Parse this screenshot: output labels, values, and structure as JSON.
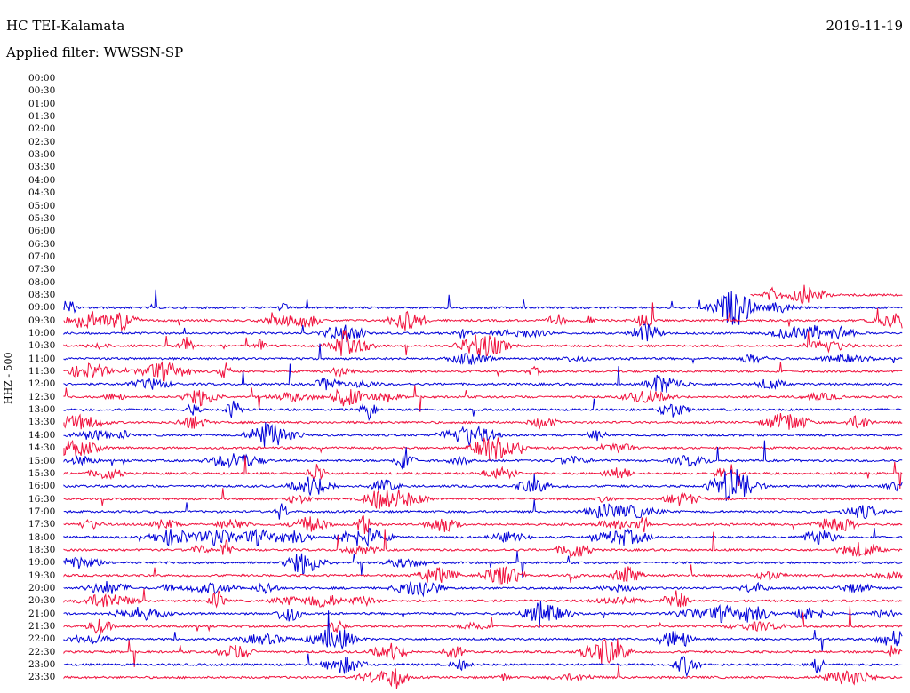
{
  "header": {
    "station": "HC TEI-Kalamata",
    "date": "2019-11-19",
    "filter": "Applied filter: WWSSN-SP"
  },
  "axis": {
    "side_label": "HHZ - 500",
    "time_labels": [
      "00:00",
      "00:30",
      "01:00",
      "01:30",
      "02:00",
      "02:30",
      "03:00",
      "03:30",
      "04:00",
      "04:30",
      "05:00",
      "05:30",
      "06:00",
      "06:30",
      "07:00",
      "07:30",
      "08:00",
      "08:30",
      "09:00",
      "09:30",
      "10:00",
      "10:30",
      "11:00",
      "11:30",
      "12:00",
      "12:30",
      "13:00",
      "13:30",
      "14:00",
      "14:30",
      "15:00",
      "15:30",
      "16:00",
      "16:30",
      "17:00",
      "17:30",
      "18:00",
      "18:30",
      "19:00",
      "19:30",
      "20:00",
      "20:30",
      "21:00",
      "21:30",
      "22:00",
      "22:30",
      "23:00",
      "23:30"
    ]
  },
  "colors": {
    "trace_a": "#0000d8",
    "trace_b": "#f0103c",
    "background": "#ffffff",
    "text": "#000000"
  },
  "trace_rows": [
    {
      "time": "08:30",
      "color": "b"
    },
    {
      "time": "09:00",
      "color": "a"
    },
    {
      "time": "09:30",
      "color": "b"
    },
    {
      "time": "10:00",
      "color": "a"
    },
    {
      "time": "10:30",
      "color": "b"
    },
    {
      "time": "11:00",
      "color": "a"
    },
    {
      "time": "11:30",
      "color": "b"
    },
    {
      "time": "12:00",
      "color": "a"
    },
    {
      "time": "12:30",
      "color": "b"
    },
    {
      "time": "13:00",
      "color": "a"
    },
    {
      "time": "13:30",
      "color": "b"
    },
    {
      "time": "14:00",
      "color": "a"
    },
    {
      "time": "14:30",
      "color": "b"
    },
    {
      "time": "15:00",
      "color": "a"
    },
    {
      "time": "15:30",
      "color": "b"
    },
    {
      "time": "16:00",
      "color": "a"
    },
    {
      "time": "16:30",
      "color": "b"
    },
    {
      "time": "17:00",
      "color": "a"
    },
    {
      "time": "17:30",
      "color": "b"
    },
    {
      "time": "18:00",
      "color": "a"
    },
    {
      "time": "18:30",
      "color": "b"
    },
    {
      "time": "19:00",
      "color": "a"
    },
    {
      "time": "19:30",
      "color": "b"
    },
    {
      "time": "20:00",
      "color": "a"
    },
    {
      "time": "20:30",
      "color": "b"
    },
    {
      "time": "21:00",
      "color": "a"
    },
    {
      "time": "21:30",
      "color": "b"
    },
    {
      "time": "22:00",
      "color": "a"
    },
    {
      "time": "22:30",
      "color": "b"
    },
    {
      "time": "23:00",
      "color": "a"
    },
    {
      "time": "23:30",
      "color": "b"
    }
  ]
}
